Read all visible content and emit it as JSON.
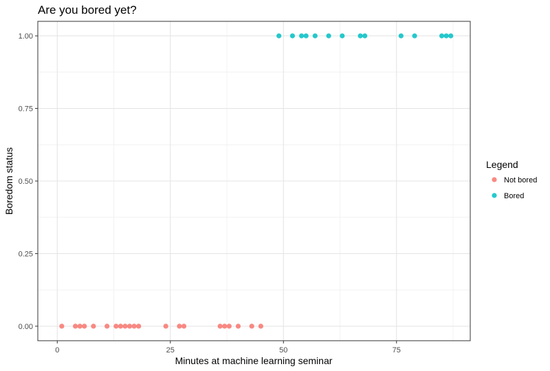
{
  "chart_data": {
    "type": "scatter",
    "title": "Are you bored yet?",
    "xlabel": "Minutes at machine learning seminar",
    "ylabel": "Boredom status",
    "xlim": [
      -4.3,
      91.3
    ],
    "ylim": [
      -0.05,
      1.05
    ],
    "xticks": [
      0,
      25,
      50,
      75
    ],
    "xtick_labels": [
      "0",
      "25",
      "50",
      "75"
    ],
    "yticks": [
      0,
      0.25,
      0.5,
      0.75,
      1
    ],
    "ytick_labels": [
      "0.00",
      "0.25",
      "0.50",
      "0.75",
      "1.00"
    ],
    "grid": true,
    "legend_position": "right",
    "legend_title": "Legend",
    "series": [
      {
        "name": "Not bored",
        "color": "#F8766D",
        "x": [
          1,
          4,
          5,
          6,
          8,
          11,
          13,
          14,
          15,
          16,
          17,
          18,
          24,
          27,
          28,
          36,
          37,
          38,
          40,
          43,
          45
        ],
        "y": [
          0,
          0,
          0,
          0,
          0,
          0,
          0,
          0,
          0,
          0,
          0,
          0,
          0,
          0,
          0,
          0,
          0,
          0,
          0,
          0,
          0
        ]
      },
      {
        "name": "Bored",
        "color": "#00BFC4",
        "x": [
          49,
          52,
          54,
          55,
          57,
          60,
          63,
          67,
          68,
          76,
          79,
          85,
          86,
          87
        ],
        "y": [
          1,
          1,
          1,
          1,
          1,
          1,
          1,
          1,
          1,
          1,
          1,
          1,
          1,
          1
        ]
      }
    ]
  }
}
